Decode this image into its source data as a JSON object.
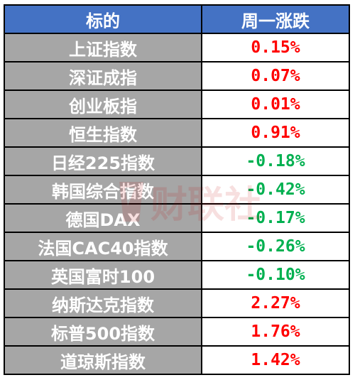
{
  "colors": {
    "header_bg": "#4472c4",
    "label_bg": "#a6a6a6",
    "up": "#ff0000",
    "down": "#00b050"
  },
  "table": {
    "headers": [
      "标的",
      "周一涨跌"
    ],
    "rows": [
      {
        "name": "上证指数",
        "change": "0.15%",
        "dir": "up"
      },
      {
        "name": "深证成指",
        "change": "0.07%",
        "dir": "up"
      },
      {
        "name": "创业板指",
        "change": "0.01%",
        "dir": "up"
      },
      {
        "name": "恒生指数",
        "change": "0.91%",
        "dir": "up"
      },
      {
        "name": "日经225指数",
        "change": "-0.18%",
        "dir": "down"
      },
      {
        "name": "韩国综合指数",
        "change": "-0.42%",
        "dir": "down"
      },
      {
        "name": "德国DAX",
        "change": "-0.17%",
        "dir": "down"
      },
      {
        "name": "法国CAC40指数",
        "change": "-0.26%",
        "dir": "down"
      },
      {
        "name": "英国富时100",
        "change": "-0.10%",
        "dir": "down"
      },
      {
        "name": "纳斯达克指数",
        "change": "2.27%",
        "dir": "up"
      },
      {
        "name": "标普500指数",
        "change": "1.76%",
        "dir": "up"
      },
      {
        "name": "道琼斯指数",
        "change": "1.42%",
        "dir": "up"
      }
    ]
  },
  "watermark": {
    "text": "财联社",
    "icon": "cls-logo-icon"
  }
}
